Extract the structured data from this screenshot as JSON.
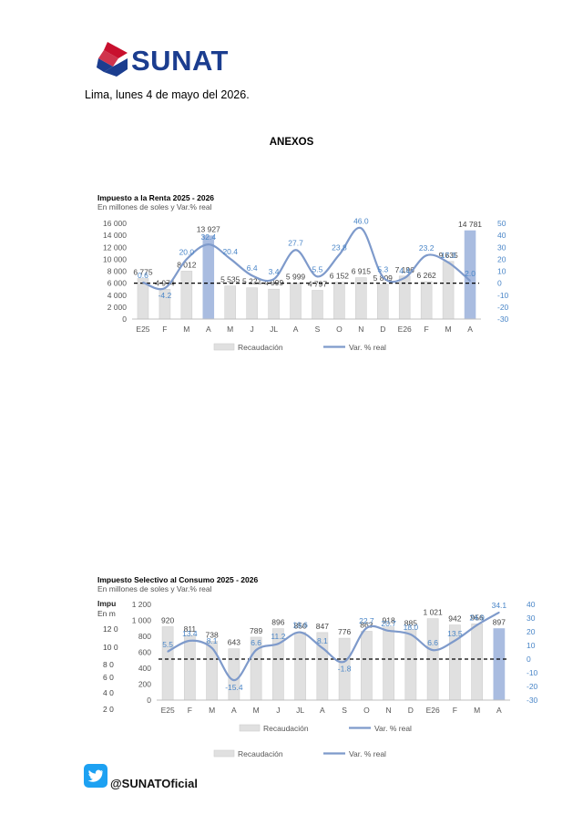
{
  "header": {
    "logo_text": "SUNAT",
    "date_line": "Lima, lunes 4 de mayo del 2026.",
    "annex_heading": "ANEXOS"
  },
  "colors": {
    "brand_red": "#C8102E",
    "brand_blue": "#1B3D8F",
    "bar_gray": "#E0E0E0",
    "bar_highlight": "#A9BCE0",
    "line_blue": "#7E9ACB",
    "label_blue": "#4A86C8",
    "twitter_blue": "#1DA1F2"
  },
  "partial_chart": {
    "title_fragment": "Impu",
    "subtitle_fragment": "En m",
    "axis_fragments": [
      "12 0",
      "10 0",
      "8 0",
      "6 0",
      "4 0",
      "2 0"
    ],
    "legend": {
      "bars": "Recaudación",
      "line": "Var. % real"
    }
  },
  "chart_data": [
    {
      "type": "bar",
      "title": "Impuesto a la Renta 2025 - 2026",
      "subtitle": "En millones de soles y Var.% real",
      "categories": [
        "E25",
        "F",
        "M",
        "A",
        "M",
        "J",
        "JL",
        "A",
        "S",
        "O",
        "N",
        "D",
        "E26",
        "F",
        "M",
        "A"
      ],
      "series": [
        {
          "name": "Recaudación",
          "type": "bar",
          "axis": "left",
          "values": [
            6775,
            4974,
            8012,
            13927,
            5535,
            5221,
            4999,
            5999,
            4797,
            6152,
            6915,
            5809,
            7196,
            6262,
            9635,
            14781
          ],
          "labels": [
            "6 775",
            "4 974",
            "8 012",
            "13 927",
            "5 535",
            "5 221",
            "4 999",
            "5 999",
            "4 797",
            "6 152",
            "6 915",
            "5 809",
            "7 196",
            "6 262",
            "9 635",
            "14 781"
          ],
          "highlight": [
            3,
            15
          ]
        },
        {
          "name": "Var. % real",
          "type": "line",
          "axis": "right",
          "values": [
            0.6,
            -4.2,
            20.0,
            32.4,
            20.4,
            6.4,
            3.4,
            27.7,
            5.5,
            23.8,
            46.0,
            5.3,
            4.4,
            23.2,
            17.3,
            2.0
          ],
          "labels": [
            "0.6",
            "-4.2",
            "20.0",
            "32.4",
            "20.4",
            "6.4",
            "3.4",
            "27.7",
            "5.5",
            "23.8",
            "46.0",
            "5.3",
            "4.4",
            "23.2",
            "17.3",
            "2.0"
          ]
        }
      ],
      "y_left": {
        "range": [
          0,
          16000
        ],
        "ticks": [
          "0",
          "2 000",
          "4 000",
          "6 000",
          "8 000",
          "10 000",
          "12 000",
          "14 000",
          "16 000"
        ]
      },
      "y_right": {
        "range": [
          -30,
          50
        ],
        "ticks": [
          "-30",
          "-20",
          "-10",
          "0",
          "10",
          "20",
          "30",
          "40",
          "50"
        ]
      },
      "reference_line": "dashed at 0 %",
      "legend_position": "bottom"
    },
    {
      "type": "bar",
      "title": "Impuesto Selectivo al Consumo 2025 - 2026",
      "subtitle": "En millones de soles y Var.% real",
      "categories": [
        "E25",
        "F",
        "M",
        "A",
        "M",
        "J",
        "JL",
        "A",
        "S",
        "O",
        "N",
        "D",
        "E26",
        "F",
        "M",
        "A"
      ],
      "series": [
        {
          "name": "Recaudación",
          "type": "bar",
          "axis": "left",
          "values": [
            920,
            811,
            738,
            643,
            789,
            896,
            850,
            847,
            776,
            863,
            918,
            885,
            1021,
            942,
            956,
            897
          ],
          "labels": [
            "920",
            "811",
            "738",
            "643",
            "789",
            "896",
            "850",
            "847",
            "776",
            "863",
            "918",
            "885",
            "1 021",
            "942",
            "956",
            "897"
          ],
          "highlight": [
            15
          ]
        },
        {
          "name": "Var. % real",
          "type": "line",
          "axis": "right",
          "values": [
            5.5,
            13.4,
            8.1,
            -15.4,
            6.6,
            11.2,
            19.6,
            8.1,
            -1.8,
            22.7,
            20.7,
            18.0,
            6.6,
            13.5,
            24.9,
            34.1
          ],
          "labels": [
            "5.5",
            "13.4",
            "8.1",
            "-15.4",
            "6.6",
            "11.2",
            "19.6",
            "8.1",
            "-1.8",
            "22.7",
            "20.7",
            "18.0",
            "6.6",
            "13.5",
            "24.9",
            "34.1"
          ]
        }
      ],
      "y_left": {
        "range": [
          0,
          1200
        ],
        "ticks": [
          "0",
          "200",
          "400",
          "600",
          "800",
          "1 000",
          "1 200"
        ]
      },
      "y_right": {
        "range": [
          -30,
          40
        ],
        "ticks": [
          "-30",
          "-20",
          "-10",
          "0",
          "10",
          "20",
          "30",
          "40"
        ]
      },
      "reference_line": "dashed at 0 %",
      "legend_position": "bottom"
    }
  ],
  "footer": {
    "twitter_icon": "twitter-bird-icon",
    "handle": "@SUNATOficial"
  }
}
